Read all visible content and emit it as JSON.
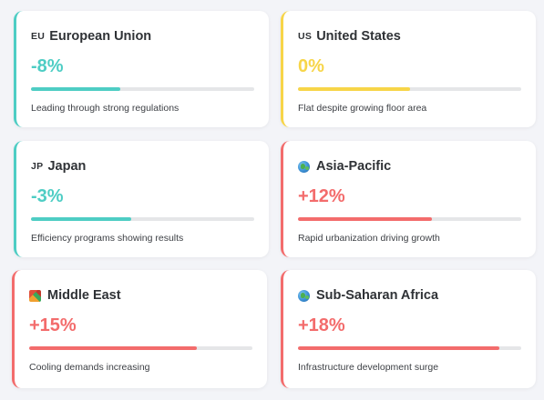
{
  "colors": {
    "teal": "#4ecdc4",
    "yellow": "#f7d548",
    "red": "#f36c6c"
  },
  "regions": [
    {
      "flag_code": "EU",
      "name": "European Union",
      "change": "-8%",
      "progress": 0.4,
      "description": "Leading through strong regulations",
      "color": "teal"
    },
    {
      "flag_code": "US",
      "name": "United States",
      "change": "0%",
      "progress": 0.5,
      "description": "Flat despite growing floor area",
      "color": "yellow"
    },
    {
      "flag_code": "JP",
      "name": "Japan",
      "change": "-3%",
      "progress": 0.45,
      "description": "Efficiency programs showing results",
      "color": "teal"
    },
    {
      "icon": "globe-icon",
      "name": "Asia-Pacific",
      "change": "+12%",
      "progress": 0.6,
      "description": "Rapid urbanization driving growth",
      "color": "red"
    },
    {
      "icon": "map-icon",
      "name": "Middle East",
      "change": "+15%",
      "progress": 0.75,
      "description": "Cooling demands increasing",
      "color": "red"
    },
    {
      "icon": "globe-icon",
      "name": "Sub-Saharan Africa",
      "change": "+18%",
      "progress": 0.9,
      "description": "Infrastructure development surge",
      "color": "red"
    }
  ]
}
